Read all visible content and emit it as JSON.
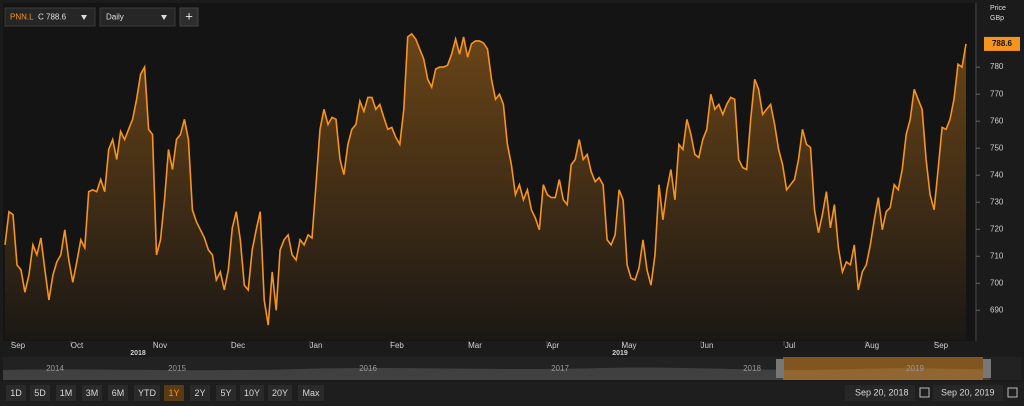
{
  "header": {
    "symbol": "PNN.L",
    "close_label": "C 788.6",
    "interval": "Daily",
    "add_button": "+"
  },
  "chart_data": {
    "type": "line",
    "series": [
      {
        "name": "PNN.L",
        "color": "#f7941d",
        "values": [
          714.2,
          726.5,
          725.4,
          706.8,
          704.9,
          696.7,
          703.0,
          714.2,
          710.5,
          716.8,
          704.9,
          693.8,
          703.0,
          707.9,
          710.5,
          719.8,
          708.6,
          700.4,
          707.9,
          716.1,
          713.1,
          733.9,
          734.6,
          733.9,
          738.4,
          733.9,
          749.5,
          753.2,
          745.8,
          756.2,
          753.2,
          757.0,
          760.7,
          768.1,
          777.4,
          780.0,
          757.0,
          755.1,
          710.5,
          716.1,
          730.9,
          749.5,
          742.1,
          753.2,
          755.1,
          760.7,
          753.2,
          727.2,
          722.8,
          719.8,
          716.8,
          712.3,
          710.5,
          701.2,
          704.2,
          697.5,
          704.9,
          720.5,
          726.5,
          716.1,
          699.3,
          697.5,
          712.3,
          719.8,
          726.5,
          693.8,
          684.5,
          704.2,
          690.0,
          712.3,
          716.1,
          717.9,
          710.5,
          708.6,
          716.1,
          714.2,
          717.9,
          716.8,
          736.5,
          757.0,
          764.4,
          758.8,
          761.4,
          760.7,
          745.8,
          740.2,
          751.4,
          757.0,
          758.8,
          767.4,
          763.6,
          768.8,
          768.8,
          764.4,
          766.2,
          761.4,
          757.0,
          757.7,
          754.0,
          751.4,
          764.4,
          791.2,
          792.3,
          790.4,
          786.7,
          783.0,
          775.5,
          772.6,
          779.3,
          780.0,
          780.0,
          780.7,
          784.8,
          790.4,
          784.8,
          791.2,
          783.7,
          788.6,
          789.7,
          789.7,
          788.9,
          786.7,
          775.5,
          768.1,
          770.0,
          766.2,
          751.4,
          743.9,
          732.8,
          736.5,
          730.9,
          734.6,
          727.2,
          724.2,
          719.8,
          736.5,
          732.8,
          731.7,
          731.7,
          738.4,
          730.9,
          729.1,
          743.9,
          745.8,
          753.2,
          745.8,
          747.7,
          741.3,
          737.6,
          739.1,
          736.5,
          716.1,
          714.2,
          717.9,
          734.6,
          730.9,
          706.8,
          701.9,
          701.2,
          705.6,
          716.1,
          704.9,
          699.3,
          710.5,
          736.5,
          723.5,
          734.6,
          742.1,
          730.9,
          751.4,
          749.5,
          760.7,
          755.1,
          747.7,
          746.5,
          753.2,
          757.0,
          770.0,
          764.4,
          766.2,
          762.5,
          766.2,
          768.8,
          768.1,
          745.8,
          742.8,
          742.1,
          760.7,
          775.5,
          771.8,
          762.5,
          764.4,
          766.2,
          758.8,
          749.5,
          743.9,
          734.6,
          736.5,
          738.4,
          745.8,
          757.0,
          751.4,
          750.3,
          727.2,
          718.7,
          725.4,
          733.9,
          720.5,
          729.1,
          713.1,
          704.2,
          707.9,
          706.8,
          714.2,
          697.5,
          704.2,
          706.8,
          714.2,
          723.5,
          731.7,
          719.8,
          726.5,
          728.0,
          736.5,
          734.6,
          742.1,
          755.1,
          760.7,
          771.8,
          768.1,
          764.4,
          745.8,
          732.8,
          727.2,
          742.1,
          757.7,
          757.0,
          760.7,
          768.1,
          781.1,
          780.0,
          788.6
        ]
      }
    ],
    "ylim": [
      679,
      803
    ],
    "yticks": [
      690,
      700,
      710,
      720,
      730,
      740,
      750,
      760,
      770,
      780
    ],
    "y_axis_title": [
      "Price",
      "GBp"
    ],
    "last_price_tag": "788.6",
    "month_labels": [
      "Sep",
      "Oct",
      "Nov",
      "Dec",
      "Jan",
      "Feb",
      "Mar",
      "Apr",
      "May",
      "Jun",
      "Jul",
      "Aug",
      "Sep"
    ],
    "year_labels": [
      "2018",
      "2019"
    ]
  },
  "navigator": {
    "years": [
      "2014",
      "2015",
      "2016",
      "2017",
      "2018",
      "2019"
    ]
  },
  "range_buttons": [
    "1D",
    "5D",
    "1M",
    "3M",
    "6M",
    "YTD",
    "1Y",
    "2Y",
    "5Y",
    "10Y",
    "20Y",
    "Max"
  ],
  "date_range": {
    "from": "Sep 20, 2018",
    "to": "Sep 20, 2019"
  }
}
